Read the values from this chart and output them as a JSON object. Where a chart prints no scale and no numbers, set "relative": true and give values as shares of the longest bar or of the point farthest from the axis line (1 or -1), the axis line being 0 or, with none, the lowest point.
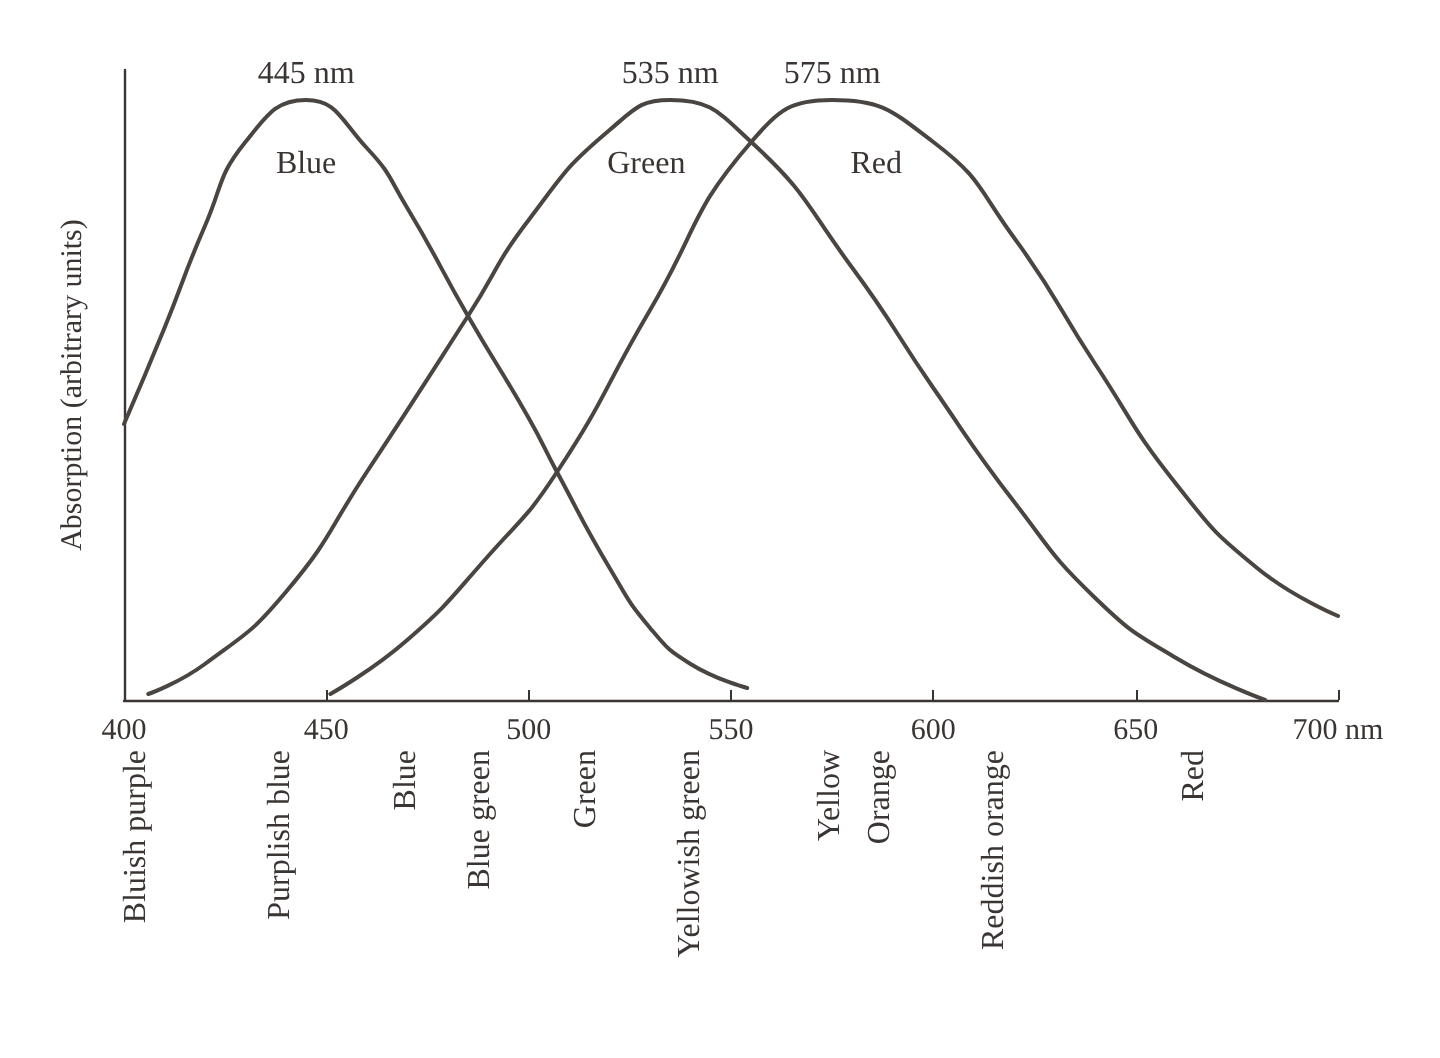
{
  "chart_data": {
    "type": "line",
    "relative": true,
    "ylabel": "Absorption (arbitrary units)",
    "xlim": [
      400,
      700
    ],
    "xticks": [
      400,
      450,
      500,
      550,
      600,
      650,
      {
        "value": 700,
        "label": "700 nm"
      }
    ],
    "grid": false,
    "legend": false,
    "marker": "none",
    "line_style": "solid",
    "series": [
      {
        "name": "Blue",
        "color": "#4a4541",
        "x": [
          400,
          410,
          420,
          430,
          445,
          460,
          470,
          485,
          500,
          507,
          520,
          530,
          540,
          554
        ],
        "values": [
          0.46,
          0.62,
          0.79,
          0.93,
          1.0,
          0.92,
          0.82,
          0.64,
          0.47,
          0.38,
          0.22,
          0.12,
          0.06,
          0.02
        ]
      },
      {
        "name": "Green",
        "color": "#4a4541",
        "x": [
          406,
          420,
          440,
          460,
          485,
          500,
          520,
          535,
          555,
          580,
          600,
          620,
          640,
          660,
          682
        ],
        "values": [
          0.01,
          0.06,
          0.18,
          0.38,
          0.64,
          0.8,
          0.95,
          1.0,
          0.93,
          0.72,
          0.52,
          0.33,
          0.17,
          0.07,
          0.0
        ]
      },
      {
        "name": "Red",
        "color": "#4a4541",
        "x": [
          451,
          470,
          490,
          507,
          530,
          555,
          575,
          600,
          620,
          640,
          660,
          680,
          700
        ],
        "values": [
          0.01,
          0.1,
          0.24,
          0.38,
          0.65,
          0.93,
          1.0,
          0.93,
          0.77,
          0.56,
          0.36,
          0.22,
          0.14
        ]
      }
    ],
    "annotations": [
      {
        "text": "445 nm",
        "x": 445,
        "y": 1
      },
      {
        "text": "535 nm",
        "x": 535,
        "y": 1
      },
      {
        "text": "575 nm",
        "x": 575,
        "y": 1
      },
      "Bluish purple",
      "Purplish blue",
      "Blue",
      "Blue green",
      "Green",
      "Yellowish green",
      "Yellow",
      "Orange",
      "Reddish orange",
      "Red"
    ]
  }
}
